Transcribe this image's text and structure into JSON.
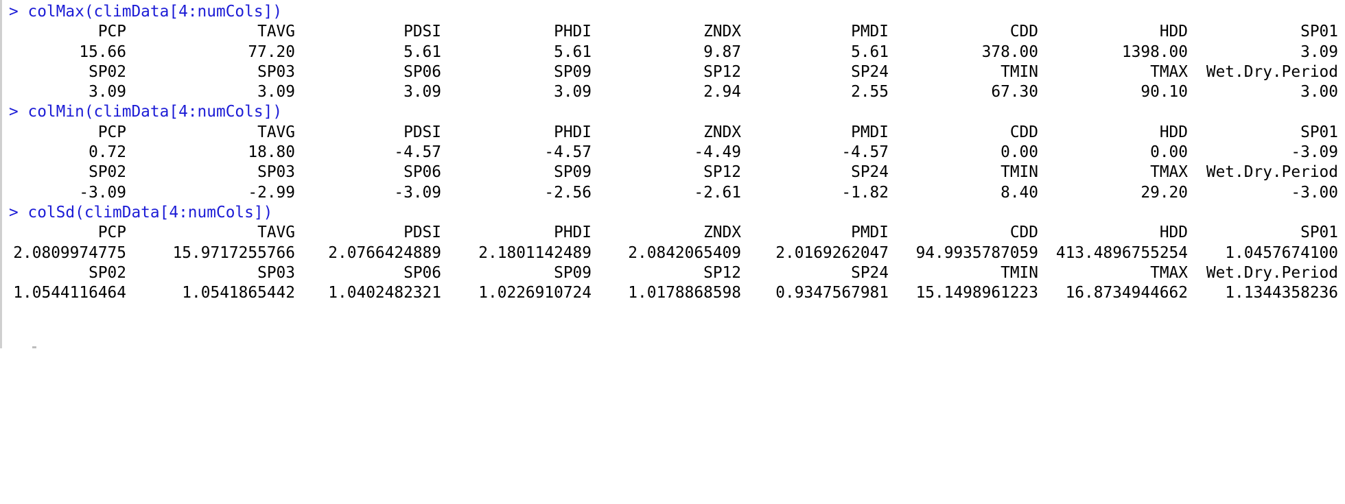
{
  "console": {
    "prompt": ">",
    "blocks": [
      {
        "command": "colMax(climData[4:numCols])",
        "rows": [
          [
            "PCP",
            "TAVG",
            "PDSI",
            "PHDI",
            "ZNDX",
            "PMDI",
            "CDD",
            "HDD",
            "SP01"
          ],
          [
            "15.66",
            "77.20",
            "5.61",
            "5.61",
            "9.87",
            "5.61",
            "378.00",
            "1398.00",
            "3.09"
          ],
          [
            "SP02",
            "SP03",
            "SP06",
            "SP09",
            "SP12",
            "SP24",
            "TMIN",
            "TMAX",
            "Wet.Dry.Period"
          ],
          [
            "3.09",
            "3.09",
            "3.09",
            "3.09",
            "2.94",
            "2.55",
            "67.30",
            "90.10",
            "3.00"
          ]
        ]
      },
      {
        "command": "colMin(climData[4:numCols])",
        "rows": [
          [
            "PCP",
            "TAVG",
            "PDSI",
            "PHDI",
            "ZNDX",
            "PMDI",
            "CDD",
            "HDD",
            "SP01"
          ],
          [
            "0.72",
            "18.80",
            "-4.57",
            "-4.57",
            "-4.49",
            "-4.57",
            "0.00",
            "0.00",
            "-3.09"
          ],
          [
            "SP02",
            "SP03",
            "SP06",
            "SP09",
            "SP12",
            "SP24",
            "TMIN",
            "TMAX",
            "Wet.Dry.Period"
          ],
          [
            "-3.09",
            "-2.99",
            "-3.09",
            "-2.56",
            "-2.61",
            "-1.82",
            "8.40",
            "29.20",
            "-3.00"
          ]
        ]
      },
      {
        "command": "colSd(climData[4:numCols])",
        "rows": [
          [
            "PCP",
            "TAVG",
            "PDSI",
            "PHDI",
            "ZNDX",
            "PMDI",
            "CDD",
            "HDD",
            "SP01"
          ],
          [
            "2.0809974775",
            "15.9717255766",
            "2.0766424889",
            "2.1801142489",
            "2.0842065409",
            "2.0169262047",
            "94.9935787059",
            "413.4896755254",
            "1.0457674100"
          ],
          [
            "SP02",
            "SP03",
            "SP06",
            "SP09",
            "SP12",
            "SP24",
            "TMIN",
            "TMAX",
            "Wet.Dry.Period"
          ],
          [
            "1.0544116464",
            "1.0541865442",
            "1.0402482321",
            "1.0226910724",
            "1.0178868598",
            "0.9347567981",
            "15.1498961223",
            "16.8734944662",
            "1.1344358236"
          ]
        ]
      }
    ]
  }
}
